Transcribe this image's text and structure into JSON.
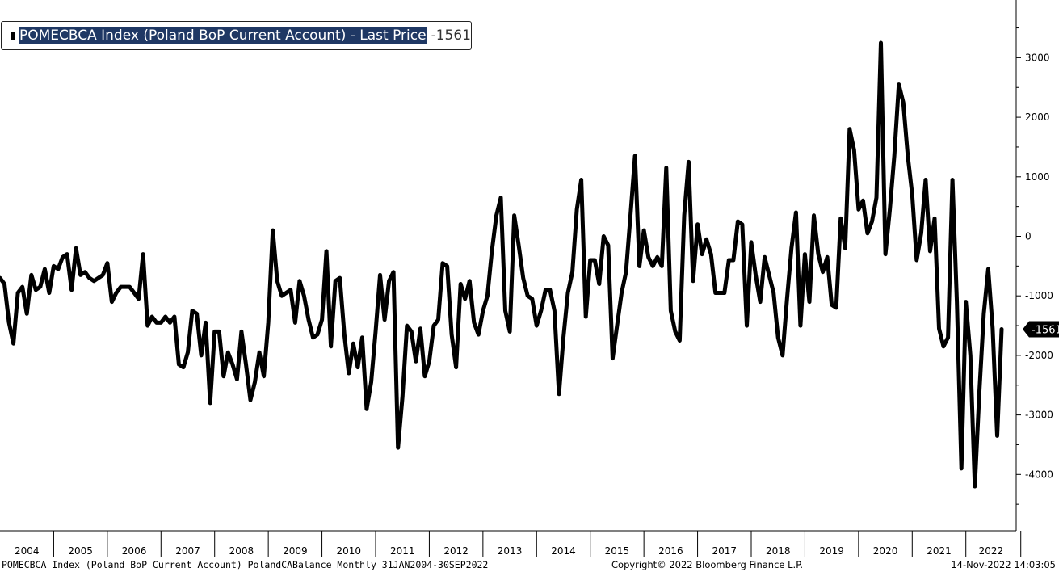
{
  "legend": {
    "name": "POMECBCA Index (Poland BoP Current Account) - Last Price",
    "last_value": "-1561"
  },
  "footer": {
    "description": "POMECBCA Index (Poland BoP Current Account) PolandCABalance  Monthly 31JAN2004-30SEP2022",
    "copyright": "Copyright© 2022 Bloomberg Finance L.P.",
    "timestamp": "14-Nov-2022 14:03:05"
  },
  "colors": {
    "line": "#000000",
    "legend_highlight": "#1f3864",
    "last_price_tag": "#000000"
  },
  "chart_data": {
    "type": "line",
    "title": "",
    "xlabel": "",
    "ylabel": "",
    "x_start": "2004-01",
    "x_end": "2022-09",
    "frequency": "monthly",
    "ylim": [
      -4800,
      3900
    ],
    "y_ticks": [
      3000,
      2000,
      1000,
      0,
      -1000,
      -2000,
      -3000,
      -4000
    ],
    "y_tick_labels": [
      "3000",
      "2000",
      "1000",
      "0",
      "-1000",
      "-2000",
      "-3000",
      "-4000"
    ],
    "year_labels": [
      "2004",
      "2005",
      "2006",
      "2007",
      "2008",
      "2009",
      "2010",
      "2011",
      "2012",
      "2013",
      "2014",
      "2015",
      "2016",
      "2017",
      "2018",
      "2019",
      "2020",
      "2021",
      "2022"
    ],
    "last_value_label": "-1561",
    "grid": false,
    "legend_position": "top-left",
    "series": [
      {
        "name": "POMECBCA Index (Poland BoP Current Account) - Last Price",
        "values": [
          -700,
          -800,
          -1450,
          -1800,
          -950,
          -850,
          -1300,
          -650,
          -900,
          -850,
          -550,
          -950,
          -500,
          -550,
          -350,
          -300,
          -900,
          -200,
          -650,
          -600,
          -700,
          -750,
          -700,
          -650,
          -450,
          -1100,
          -950,
          -850,
          -850,
          -850,
          -950,
          -1050,
          -300,
          -1500,
          -1350,
          -1450,
          -1450,
          -1350,
          -1450,
          -1350,
          -2150,
          -2200,
          -1950,
          -1250,
          -1300,
          -2000,
          -1450,
          -2800,
          -1600,
          -1600,
          -2350,
          -1950,
          -2150,
          -2400,
          -1600,
          -2150,
          -2750,
          -2450,
          -1950,
          -2350,
          -1450,
          100,
          -750,
          -1000,
          -950,
          -900,
          -1450,
          -750,
          -1000,
          -1400,
          -1700,
          -1650,
          -1400,
          -250,
          -1850,
          -750,
          -700,
          -1650,
          -2300,
          -1800,
          -2200,
          -1700,
          -2900,
          -2450,
          -1600,
          -650,
          -1400,
          -750,
          -600,
          -3550,
          -2700,
          -1500,
          -1600,
          -2100,
          -1550,
          -2350,
          -2100,
          -1500,
          -1400,
          -450,
          -500,
          -1650,
          -2200,
          -800,
          -1050,
          -750,
          -1450,
          -1650,
          -1250,
          -1000,
          -250,
          350,
          650,
          -1250,
          -1600,
          350,
          -150,
          -700,
          -1000,
          -1050,
          -1500,
          -1250,
          -900,
          -900,
          -1250,
          -2650,
          -1700,
          -950,
          -600,
          450,
          950,
          -1350,
          -400,
          -400,
          -800,
          0,
          -150,
          -2050,
          -1500,
          -950,
          -600,
          350,
          1350,
          -500,
          100,
          -350,
          -500,
          -350,
          -500,
          1150,
          -1250,
          -1600,
          -1750,
          350,
          1250,
          -750,
          200,
          -300,
          -50,
          -300,
          -950,
          -950,
          -950,
          -400,
          -400,
          250,
          200,
          -1500,
          -100,
          -650,
          -1100,
          -350,
          -650,
          -950,
          -1700,
          -2000,
          -1050,
          -200,
          400,
          -1500,
          -300,
          -1100,
          350,
          -300,
          -600,
          -350,
          -1150,
          -1200,
          300,
          -200,
          1800,
          1450,
          450,
          600,
          50,
          250,
          650,
          3250,
          -300,
          450,
          1350,
          2550,
          2250,
          1350,
          700,
          -400,
          50,
          950,
          -250,
          300,
          -1550,
          -1850,
          -1700,
          950,
          -1100,
          -3900,
          -1100,
          -2000,
          -4200,
          -2650,
          -1300,
          -550,
          -1550,
          -3350,
          -1561
        ]
      }
    ]
  }
}
